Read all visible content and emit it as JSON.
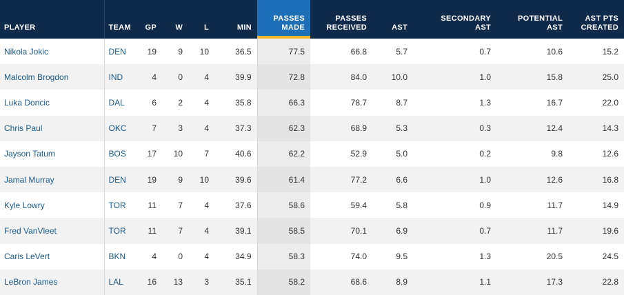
{
  "headers": {
    "player": "PLAYER",
    "team": "TEAM",
    "gp": "GP",
    "w": "W",
    "l": "L",
    "min": "MIN",
    "passes_made": "PASSES\nMADE",
    "passes_received": "PASSES\nRECEIVED",
    "ast": "AST",
    "secondary_ast": "SECONDARY\nAST",
    "potential_ast": "POTENTIAL\nAST",
    "ast_pts_created": "AST PTS\nCREATED"
  },
  "colors": {
    "header_bg": "#0f2a4a",
    "sorted_header_bg": "#1d6fb8",
    "sort_indicator": "#f5b82e",
    "link": "#1a5a8c"
  },
  "rows": [
    {
      "player": "Nikola Jokic",
      "team": "DEN",
      "gp": "19",
      "w": "9",
      "l": "10",
      "min": "36.5",
      "passes_made": "77.5",
      "passes_received": "66.8",
      "ast": "5.7",
      "secondary_ast": "0.7",
      "potential_ast": "10.6",
      "ast_pts_created": "15.2"
    },
    {
      "player": "Malcolm Brogdon",
      "team": "IND",
      "gp": "4",
      "w": "0",
      "l": "4",
      "min": "39.9",
      "passes_made": "72.8",
      "passes_received": "84.0",
      "ast": "10.0",
      "secondary_ast": "1.0",
      "potential_ast": "15.8",
      "ast_pts_created": "25.0"
    },
    {
      "player": "Luka Doncic",
      "team": "DAL",
      "gp": "6",
      "w": "2",
      "l": "4",
      "min": "35.8",
      "passes_made": "66.3",
      "passes_received": "78.7",
      "ast": "8.7",
      "secondary_ast": "1.3",
      "potential_ast": "16.7",
      "ast_pts_created": "22.0"
    },
    {
      "player": "Chris Paul",
      "team": "OKC",
      "gp": "7",
      "w": "3",
      "l": "4",
      "min": "37.3",
      "passes_made": "62.3",
      "passes_received": "68.9",
      "ast": "5.3",
      "secondary_ast": "0.3",
      "potential_ast": "12.4",
      "ast_pts_created": "14.3"
    },
    {
      "player": "Jayson Tatum",
      "team": "BOS",
      "gp": "17",
      "w": "10",
      "l": "7",
      "min": "40.6",
      "passes_made": "62.2",
      "passes_received": "52.9",
      "ast": "5.0",
      "secondary_ast": "0.2",
      "potential_ast": "9.8",
      "ast_pts_created": "12.6"
    },
    {
      "player": "Jamal Murray",
      "team": "DEN",
      "gp": "19",
      "w": "9",
      "l": "10",
      "min": "39.6",
      "passes_made": "61.4",
      "passes_received": "77.2",
      "ast": "6.6",
      "secondary_ast": "1.0",
      "potential_ast": "12.6",
      "ast_pts_created": "16.8"
    },
    {
      "player": "Kyle Lowry",
      "team": "TOR",
      "gp": "11",
      "w": "7",
      "l": "4",
      "min": "37.6",
      "passes_made": "58.6",
      "passes_received": "59.4",
      "ast": "5.8",
      "secondary_ast": "0.9",
      "potential_ast": "11.7",
      "ast_pts_created": "14.9"
    },
    {
      "player": "Fred VanVleet",
      "team": "TOR",
      "gp": "11",
      "w": "7",
      "l": "4",
      "min": "39.1",
      "passes_made": "58.5",
      "passes_received": "70.1",
      "ast": "6.9",
      "secondary_ast": "0.7",
      "potential_ast": "11.7",
      "ast_pts_created": "19.6"
    },
    {
      "player": "Caris LeVert",
      "team": "BKN",
      "gp": "4",
      "w": "0",
      "l": "4",
      "min": "34.9",
      "passes_made": "58.3",
      "passes_received": "74.0",
      "ast": "9.5",
      "secondary_ast": "1.3",
      "potential_ast": "20.5",
      "ast_pts_created": "24.5"
    },
    {
      "player": "LeBron James",
      "team": "LAL",
      "gp": "16",
      "w": "13",
      "l": "3",
      "min": "35.1",
      "passes_made": "58.2",
      "passes_received": "68.6",
      "ast": "8.9",
      "secondary_ast": "1.1",
      "potential_ast": "17.3",
      "ast_pts_created": "22.8"
    }
  ]
}
